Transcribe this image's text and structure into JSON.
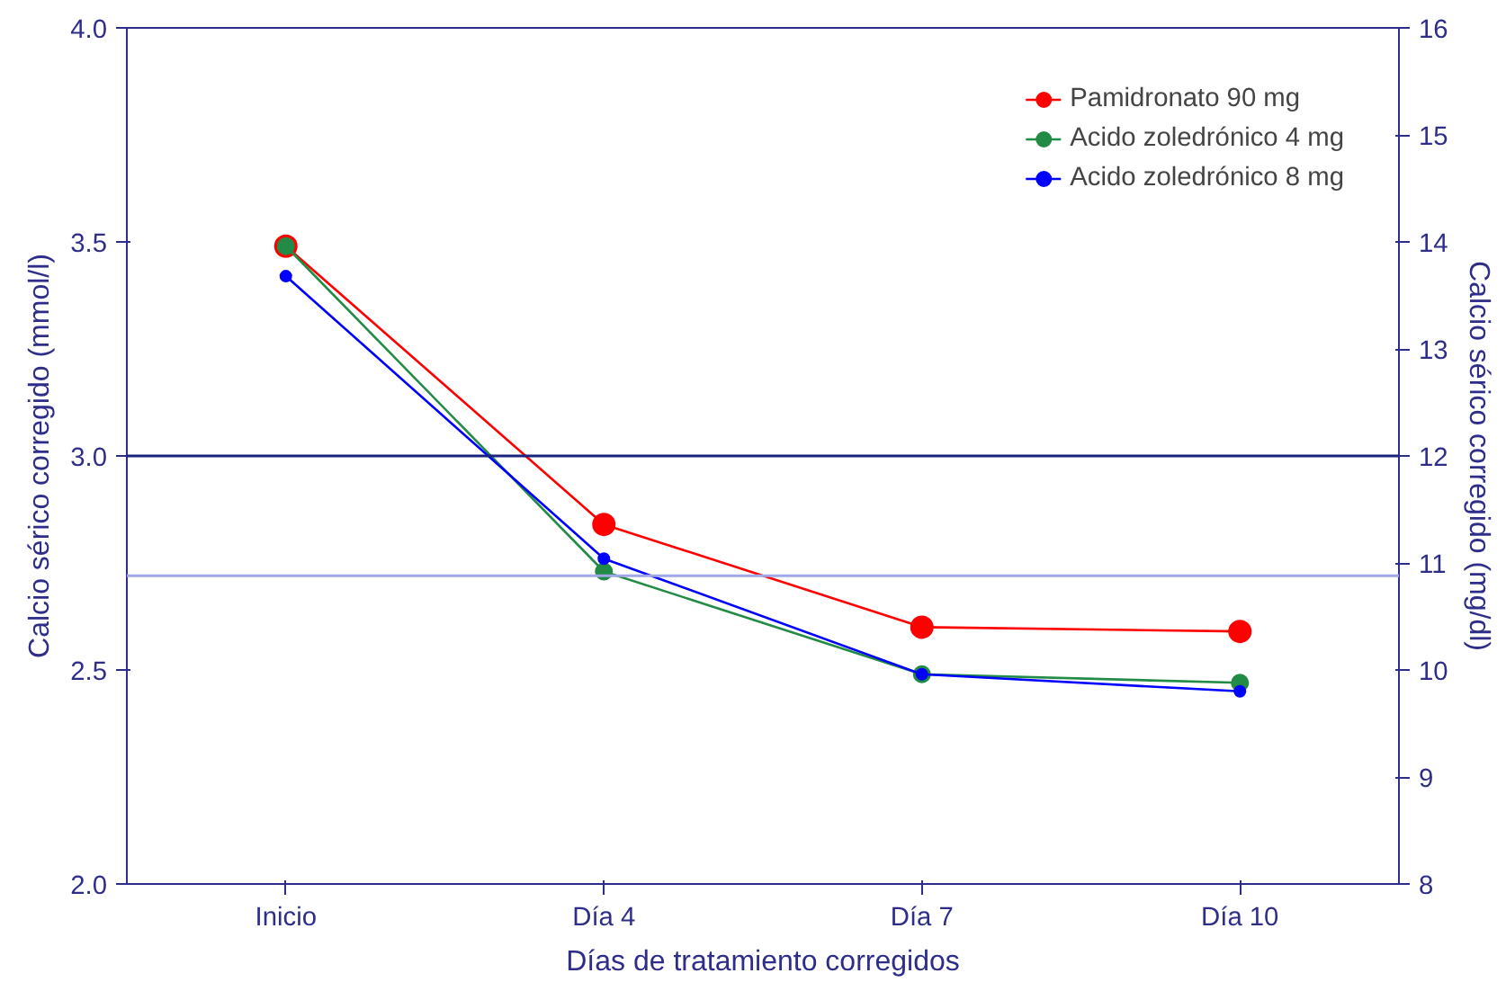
{
  "chart_data": {
    "type": "line",
    "xlabel": "Días de tratamiento corregidos",
    "ylabel": "Calcio sérico corregido (mmol/l)",
    "y2label": "Calcio sérico corregido (mg/dl)",
    "categories": [
      "Inicio",
      "Día 4",
      "Día 7",
      "Día 10"
    ],
    "series": [
      {
        "name": "Pamidronato 90 mg",
        "color": "#ff0000",
        "values": [
          3.49,
          2.84,
          2.6,
          2.59
        ]
      },
      {
        "name": "Acido zoledrónico 4 mg",
        "color": "#228b45",
        "values": [
          3.49,
          2.73,
          2.49,
          2.47
        ]
      },
      {
        "name": "Acido zoledrónico 8 mg",
        "color": "#0000ff",
        "values": [
          3.42,
          2.76,
          2.49,
          2.45
        ]
      }
    ],
    "ylim": [
      2.0,
      4.0
    ],
    "yticks": [
      {
        "value": 2.0,
        "label": "2.0"
      },
      {
        "value": 2.5,
        "label": "2.5"
      },
      {
        "value": 3.0,
        "label": "3.0"
      },
      {
        "value": 3.5,
        "label": "3.5"
      },
      {
        "value": 4.0,
        "label": "4.0"
      }
    ],
    "y2lim": [
      8,
      16
    ],
    "y2ticks": [
      8,
      9,
      10,
      11,
      12,
      13,
      14,
      15,
      16
    ],
    "ref_lines": [
      {
        "axis": "y",
        "value": 3.0,
        "color": "#1a237e"
      },
      {
        "axis": "y",
        "value": 2.72,
        "color": "#9fa8e6"
      }
    ],
    "grid": false,
    "legend": "top right",
    "marker": "circle",
    "line_style": "solid"
  }
}
